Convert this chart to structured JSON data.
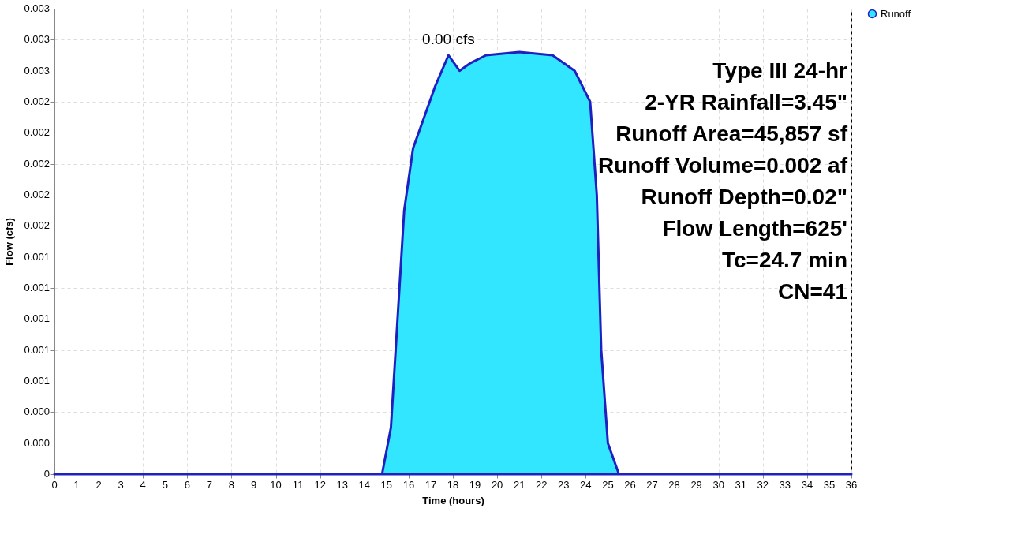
{
  "chart_data": {
    "type": "area",
    "xlabel": "Time  (hours)",
    "ylabel": "Flow  (cfs)",
    "x": [
      0,
      14.8,
      15.2,
      15.5,
      15.8,
      16.2,
      16.7,
      17.2,
      17.8,
      18.3,
      18.8,
      19.5,
      21,
      22.5,
      23.5,
      24.2,
      24.5,
      24.7,
      25,
      25.5,
      26,
      36
    ],
    "series": [
      {
        "name": "Runoff",
        "color": "#33e6ff",
        "values": [
          0,
          0,
          0.0003,
          0.001,
          0.0017,
          0.0021,
          0.0023,
          0.0025,
          0.0027,
          0.0026,
          0.00265,
          0.0027,
          0.00272,
          0.0027,
          0.0026,
          0.0024,
          0.0018,
          0.0008,
          0.0002,
          0,
          0,
          0
        ]
      }
    ],
    "xlim": [
      0,
      36
    ],
    "xticks": [
      0,
      1,
      2,
      3,
      4,
      5,
      6,
      7,
      8,
      9,
      10,
      11,
      12,
      13,
      14,
      15,
      16,
      17,
      18,
      19,
      20,
      21,
      22,
      23,
      24,
      25,
      26,
      27,
      28,
      29,
      30,
      31,
      32,
      33,
      34,
      35,
      36
    ],
    "ylim": [
      0,
      0.003
    ],
    "yticks": [
      0,
      {
        "value": 0.0002,
        "label": "0.000"
      },
      {
        "value": 0.0004,
        "label": "0.000"
      },
      {
        "value": 0.0006,
        "label": "0.001"
      },
      {
        "value": 0.0008,
        "label": "0.001"
      },
      {
        "value": 0.001,
        "label": "0.001"
      },
      {
        "value": 0.0012,
        "label": "0.001"
      },
      {
        "value": 0.0014,
        "label": "0.001"
      },
      {
        "value": 0.0016,
        "label": "0.002"
      },
      {
        "value": 0.0018,
        "label": "0.002"
      },
      {
        "value": 0.002,
        "label": "0.002"
      },
      {
        "value": 0.0022,
        "label": "0.002"
      },
      {
        "value": 0.0024,
        "label": "0.002"
      },
      {
        "value": 0.0026,
        "label": "0.003"
      },
      {
        "value": 0.0028,
        "label": "0.003"
      },
      {
        "value": 0.003,
        "label": "0.003"
      }
    ],
    "annotations": [
      {
        "text": "0.00 cfs",
        "x": 17.8,
        "y": 0.0027
      },
      "Type III 24-hr",
      "2-YR Rainfall=3.45\"",
      "Runoff Area=45,857 sf",
      "Runoff Volume=0.002 af",
      "Runoff Depth=0.02\"",
      "Flow Length=625'",
      "Tc=24.7 min",
      "CN=41"
    ],
    "grid": true,
    "legend": "right"
  }
}
